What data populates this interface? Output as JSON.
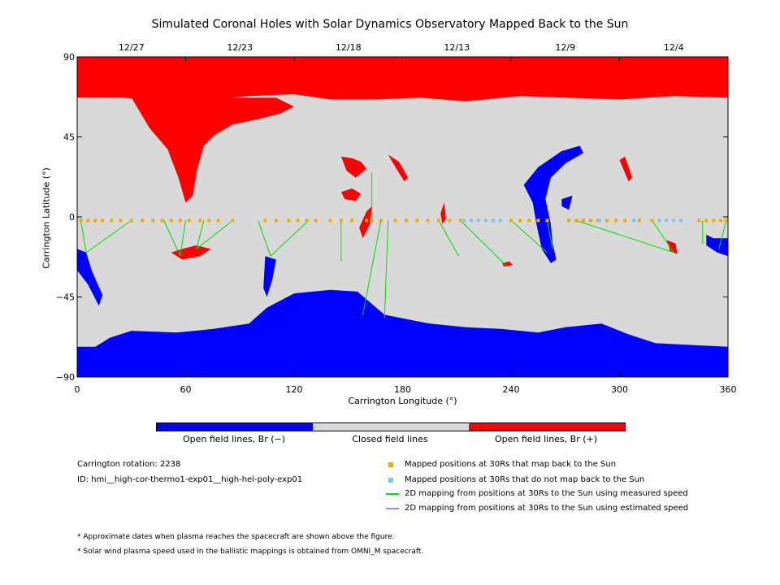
{
  "title": "Simulated Coronal Holes with Solar Dynamics Observatory Mapped Back to the Sun",
  "colors": {
    "closed": "#d9d9d9",
    "open_positive": "#ff0000",
    "open_negative": "#0000ff",
    "measured_line": "#00dd00",
    "estimated_line": "#b57ee8",
    "mapped": "#f5a800",
    "not_mapped": "#80c0ff"
  },
  "chart_data": {
    "type": "heatmap",
    "title": "Simulated Coronal Holes with Solar Dynamics Observatory Mapped Back to the Sun",
    "xlabel": "Carrington Longitude (°)",
    "ylabel": "Carrington Latitude (°)",
    "xlim": [
      0,
      360
    ],
    "ylim": [
      -90,
      90
    ],
    "x_ticks": [
      "0",
      "60",
      "120",
      "180",
      "240",
      "300",
      "360"
    ],
    "y_ticks": [
      "90",
      "45",
      "0",
      "−45",
      "−90"
    ],
    "top_dates": [
      {
        "label": "12/27",
        "lon": 30
      },
      {
        "label": "12/23",
        "lon": 90
      },
      {
        "label": "12/18",
        "lon": 150
      },
      {
        "label": "12/13",
        "lon": 210
      },
      {
        "label": "12/9",
        "lon": 270
      },
      {
        "label": "12/4",
        "lon": 330
      }
    ],
    "regions": {
      "north_polar_positive_boundary_lat": 67,
      "south_polar_negative_boundary_lat": -73
    },
    "mapped_points_lon": [
      2,
      6,
      10,
      14,
      19,
      24,
      30,
      36,
      42,
      47,
      52,
      57,
      62,
      68,
      73,
      78,
      86,
      104,
      110,
      117,
      122,
      127,
      132,
      140,
      146,
      152,
      160,
      163,
      168,
      176,
      182,
      188,
      194,
      200,
      206,
      212,
      240,
      245,
      250,
      255,
      260,
      272,
      276,
      280,
      284,
      288,
      293,
      298,
      303,
      311,
      318,
      344,
      348,
      352,
      356,
      359
    ],
    "not_mapped_points_lon": [
      214,
      218,
      222,
      226,
      230,
      234,
      289,
      308,
      322,
      326,
      330,
      334
    ],
    "mapped_lat": -2,
    "footpoints": [
      {
        "from": [
          2,
          -2
        ],
        "to": [
          5,
          -20
        ]
      },
      {
        "from": [
          30,
          -2
        ],
        "to": [
          5,
          -20
        ]
      },
      {
        "from": [
          48,
          -2
        ],
        "to": [
          57,
          -22
        ]
      },
      {
        "from": [
          60,
          -2
        ],
        "to": [
          57,
          -22
        ]
      },
      {
        "from": [
          70,
          -2
        ],
        "to": [
          66,
          -18
        ]
      },
      {
        "from": [
          86,
          -2
        ],
        "to": [
          66,
          -18
        ]
      },
      {
        "from": [
          100,
          -2
        ],
        "to": [
          107,
          -22
        ]
      },
      {
        "from": [
          128,
          -2
        ],
        "to": [
          107,
          -22
        ]
      },
      {
        "from": [
          146,
          -2
        ],
        "to": [
          146,
          -25
        ]
      },
      {
        "from": [
          163,
          -2
        ],
        "to": [
          163,
          25
        ]
      },
      {
        "from": [
          168,
          -2
        ],
        "to": [
          158,
          -55
        ]
      },
      {
        "from": [
          172,
          -2
        ],
        "to": [
          170,
          -57
        ]
      },
      {
        "from": [
          200,
          -2
        ],
        "to": [
          211,
          -22
        ]
      },
      {
        "from": [
          212,
          -2
        ],
        "to": [
          237,
          -27
        ]
      },
      {
        "from": [
          240,
          -2
        ],
        "to": [
          260,
          -20
        ]
      },
      {
        "from": [
          260,
          -2
        ],
        "to": [
          263,
          -18
        ]
      },
      {
        "from": [
          276,
          -2
        ],
        "to": [
          330,
          -20
        ]
      },
      {
        "from": [
          318,
          -2
        ],
        "to": [
          330,
          -20
        ]
      },
      {
        "from": [
          346,
          -2
        ],
        "to": [
          346,
          -15
        ]
      },
      {
        "from": [
          359,
          -2
        ],
        "to": [
          355,
          -18
        ]
      }
    ]
  },
  "colorbar": {
    "labels": [
      "Open field lines, Br (−)",
      "Closed field lines",
      "Open field lines, Br (+)"
    ]
  },
  "info": {
    "rotation": "Carrington rotation: 2238",
    "id": "ID: hmi__high-cor-thermo1-exp01__high-hel-poly-exp01"
  },
  "legend": [
    {
      "text": "Mapped positions at 30Rs that map back to the Sun"
    },
    {
      "text": "Mapped positions at 30Rs that do not map back to the Sun"
    },
    {
      "text": "2D mapping from positions at 30Rs to the Sun using measured speed"
    },
    {
      "text": "2D mapping from positions at 30Rs to the Sun using estimated speed"
    }
  ],
  "notes": [
    "* Approximate dates when plasma reaches the spacecraft are shown above the figure.",
    "* Solar wind plasma speed used in the ballistic mappings is obtained from OMNI_M spacecraft."
  ]
}
